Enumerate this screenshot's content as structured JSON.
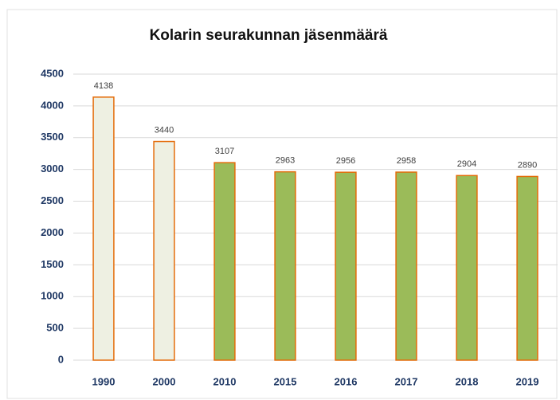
{
  "chart_data": {
    "type": "bar",
    "title": "Kolarin seurakunnan jäsenmäärä",
    "categories": [
      "1990",
      "2000",
      "2010",
      "2015",
      "2016",
      "2017",
      "2018",
      "2019"
    ],
    "values": [
      4138,
      3440,
      3107,
      2963,
      2956,
      2958,
      2904,
      2890
    ],
    "colors": [
      "#eef0e2",
      "#eef0e2",
      "#9bbb59",
      "#9bbb59",
      "#9bbb59",
      "#9bbb59",
      "#9bbb59",
      "#9bbb59"
    ],
    "edge_color": "#e46c0a",
    "ylim": [
      0,
      4500
    ],
    "yticks": [
      0,
      500,
      1000,
      1500,
      2000,
      2500,
      3000,
      3500,
      4000,
      4500
    ],
    "grid": true
  }
}
